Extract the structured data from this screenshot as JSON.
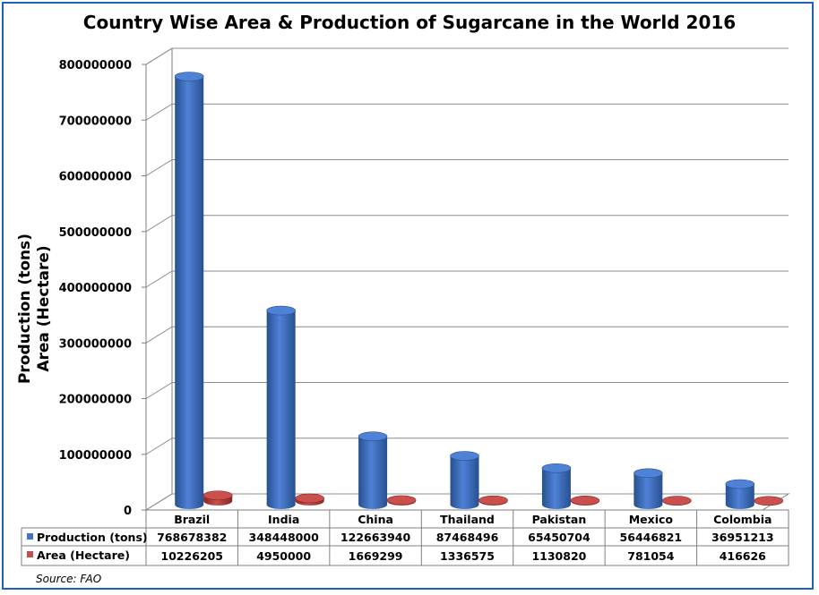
{
  "chart_data": {
    "type": "bar",
    "title": "Country Wise Area & Production of Sugarcane in the World 2016",
    "ylabel": [
      "Production (tons)",
      "Area (Hectare)"
    ],
    "ylim": [
      0,
      800000000
    ],
    "yticks": [
      "0",
      "100000000",
      "200000000",
      "300000000",
      "400000000",
      "500000000",
      "600000000",
      "700000000",
      "800000000"
    ],
    "categories": [
      "Brazil",
      "India",
      "China",
      "Thailand",
      "Pakistan",
      "Mexico",
      "Colombia"
    ],
    "series": [
      {
        "name": "Production (tons)",
        "color": "#4472c4",
        "values": [
          768678382,
          348448000,
          122663940,
          87468496,
          65450704,
          56446821,
          36951213
        ]
      },
      {
        "name": "Area (Hectare)",
        "color": "#c0504d",
        "values": [
          10226205,
          4950000,
          1669299,
          1336575,
          1130820,
          781054,
          416626
        ]
      }
    ],
    "table": {
      "rows": [
        [
          "768678382",
          "348448000",
          "122663940",
          "87468496",
          "65450704",
          "56446821",
          "36951213"
        ],
        [
          "10226205",
          "4950000",
          "1669299",
          "1336575",
          "1130820",
          "781054",
          "416626"
        ]
      ]
    },
    "grid": true,
    "legend": "data-table"
  },
  "source": "Source: FAO"
}
